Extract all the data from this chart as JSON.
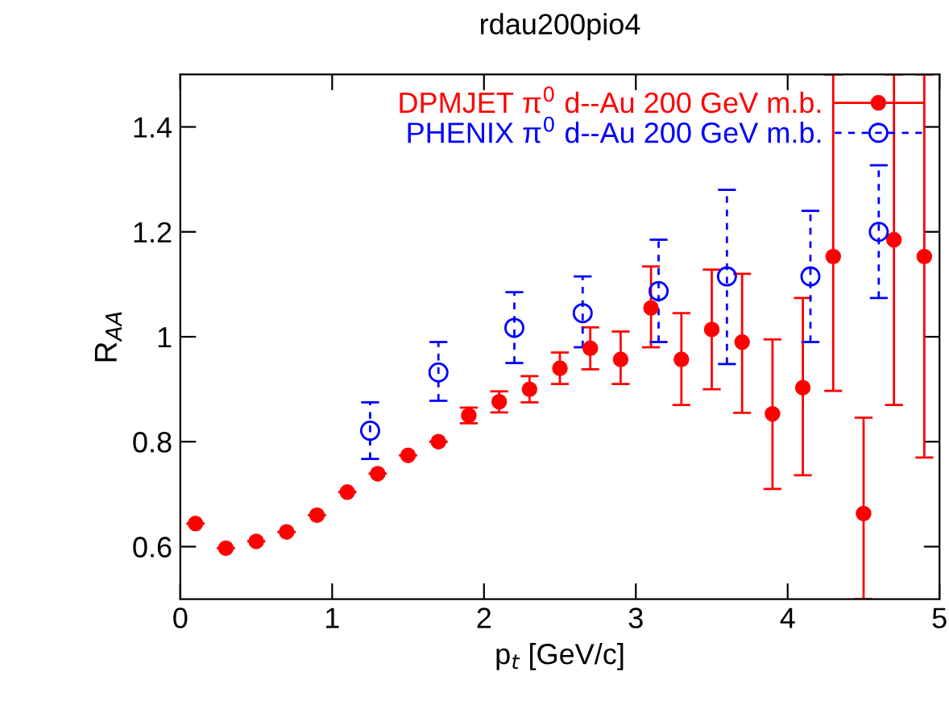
{
  "chart_data": {
    "type": "scatter",
    "title": "rdau200pio4",
    "xlabel": "p$_{t}$ [GeV/c]",
    "ylabel": "R$_{AA}$",
    "xlim": [
      0,
      5
    ],
    "ylim": [
      0.5,
      1.5
    ],
    "xticks": [
      0,
      1,
      2,
      3,
      4,
      5
    ],
    "yticks": [
      0.6,
      0.8,
      {
        "value": 1.0,
        "label": "1"
      },
      1.2,
      1.4
    ],
    "grid": false,
    "legend": "top right",
    "series": [
      {
        "name": "DPMJET π$^{0}$ d--Au 200 GeV m.b.",
        "color": "#ff0000",
        "marker": "circle",
        "line_style": "solid",
        "x": [
          0.1,
          0.3,
          0.5,
          0.7,
          0.9,
          1.1,
          1.3,
          1.5,
          1.7,
          1.9,
          2.1,
          2.3,
          2.5,
          2.7,
          2.9,
          3.1,
          3.3,
          3.5,
          3.7,
          3.9,
          4.1,
          4.3,
          4.5,
          4.7,
          4.9
        ],
        "values": [
          0.644,
          0.597,
          0.61,
          0.628,
          0.66,
          0.704,
          0.739,
          0.774,
          0.8,
          0.85,
          0.876,
          0.9,
          0.94,
          0.978,
          0.957,
          1.055,
          0.957,
          1.014,
          0.99,
          0.853,
          0.903,
          1.153,
          0.663,
          1.185,
          1.153
        ],
        "errors": [
          null,
          null,
          null,
          null,
          null,
          null,
          null,
          null,
          null,
          0.015,
          0.02,
          0.025,
          0.03,
          0.04,
          [
            0.91,
            1.01
          ],
          [
            0.98,
            1.134
          ],
          [
            0.87,
            1.045
          ],
          [
            0.9,
            1.128
          ],
          [
            0.855,
            1.12
          ],
          [
            0.71,
            0.995
          ],
          [
            0.736,
            1.074
          ],
          [
            0.897,
            1.5
          ],
          [
            0.5,
            0.846
          ],
          [
            0.87,
            1.5
          ],
          [
            0.77,
            1.5
          ]
        ]
      },
      {
        "name": "PHENIX π$^{0}$ d--Au 200 GeV m.b.",
        "color": "#0000ff",
        "marker": "circle",
        "line_style": "dashed",
        "x": [
          1.25,
          1.7,
          2.2,
          2.65,
          3.15,
          3.6,
          4.15,
          4.6
        ],
        "values": [
          0.821,
          0.932,
          1.017,
          1.045,
          1.087,
          1.115,
          1.115,
          1.2
        ],
        "errors": [
          [
            0.767,
            0.875
          ],
          [
            0.878,
            0.99
          ],
          [
            0.95,
            1.085
          ],
          [
            0.98,
            1.115
          ],
          [
            0.99,
            1.185
          ],
          [
            0.948,
            1.28
          ],
          [
            0.99,
            1.24
          ],
          [
            1.074,
            1.327
          ]
        ]
      }
    ]
  }
}
